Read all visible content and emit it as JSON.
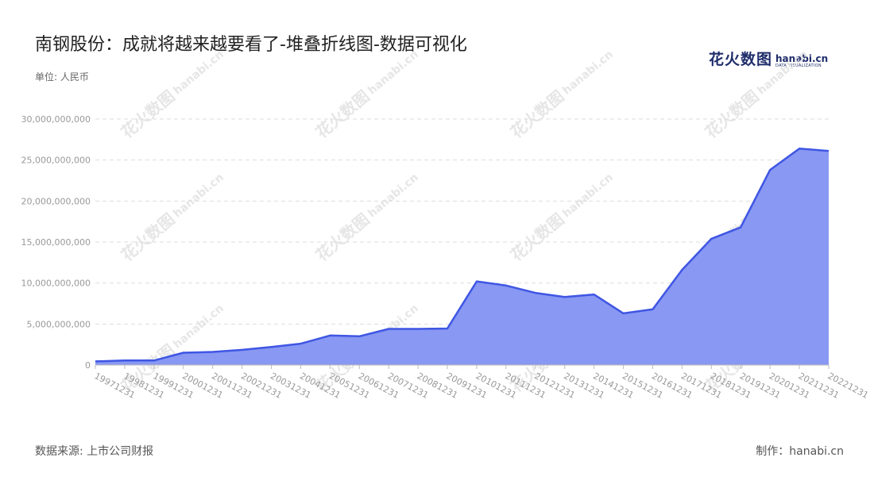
{
  "title": "南钢股份：成就将越来越要看了-堆叠折线图-数据可视化",
  "unit_label": "单位: 人民币",
  "logo": {
    "cn": "花火数图",
    "en": "hanabi.cn",
    "sub": "DATA VISUALIZATION",
    "watermark_cn": "花火数图",
    "watermark_en": "hanabi.cn"
  },
  "source": "数据来源: 上市公司财报",
  "maker": "制作：hanabi.cn",
  "colors": {
    "line": "#3f56e3",
    "fill": "#8898f3",
    "grid": "#dddddd",
    "axis": "#bbbbbb",
    "tick_text": "#999999",
    "watermark": "#e6e6e6"
  },
  "chart_data": {
    "type": "area",
    "categories": [
      "19971231",
      "19981231",
      "19991231",
      "20001231",
      "20011231",
      "20021231",
      "20031231",
      "20041231",
      "20051231",
      "20061231",
      "20071231",
      "20081231",
      "20091231",
      "20101231",
      "20111231",
      "20121231",
      "20131231",
      "20141231",
      "20151231",
      "20161231",
      "20171231",
      "20181231",
      "20191231",
      "20201231",
      "20211231",
      "20221231"
    ],
    "values": [
      450000000,
      550000000,
      550000000,
      1500000000,
      1600000000,
      1850000000,
      2200000000,
      2600000000,
      3600000000,
      3500000000,
      4400000000,
      4400000000,
      4450000000,
      10200000000,
      9700000000,
      8800000000,
      8300000000,
      8600000000,
      6300000000,
      6800000000,
      11600000000,
      15400000000,
      16800000000,
      23800000000,
      26400000000,
      26100000000
    ],
    "yticks": [
      "30,000,000,000",
      "25,000,000,000",
      "20,000,000,000",
      "15,000,000,000",
      "10,000,000,000",
      "5,000,000,000",
      "0"
    ],
    "ylim": [
      0,
      30000000000
    ],
    "grid": true,
    "legend": "none"
  }
}
